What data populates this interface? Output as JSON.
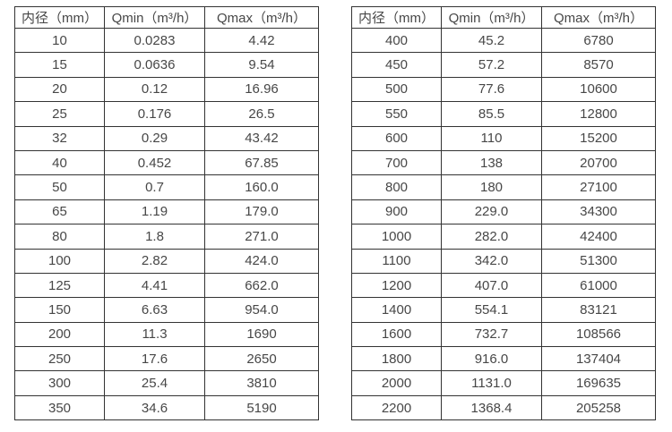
{
  "page": {
    "background_color": "#ffffff",
    "border_color": "#333333",
    "text_color": "#474747"
  },
  "tables": [
    {
      "name": "flow-rate-table-dn10-350",
      "headers": [
        "内径（mm）",
        "Qmin（m³/h）",
        "Qmax（m³/h）"
      ],
      "rows": [
        [
          "10",
          "0.0283",
          "4.42"
        ],
        [
          "15",
          "0.0636",
          "9.54"
        ],
        [
          "20",
          "0.12",
          "16.96"
        ],
        [
          "25",
          "0.176",
          "26.5"
        ],
        [
          "32",
          "0.29",
          "43.42"
        ],
        [
          "40",
          "0.452",
          "67.85"
        ],
        [
          "50",
          "0.7",
          "160.0"
        ],
        [
          "65",
          "1.19",
          "179.0"
        ],
        [
          "80",
          "1.8",
          "271.0"
        ],
        [
          "100",
          "2.82",
          "424.0"
        ],
        [
          "125",
          "4.41",
          "662.0"
        ],
        [
          "150",
          "6.63",
          "954.0"
        ],
        [
          "200",
          "11.3",
          "1690"
        ],
        [
          "250",
          "17.6",
          "2650"
        ],
        [
          "300",
          "25.4",
          "3810"
        ],
        [
          "350",
          "34.6",
          "5190"
        ]
      ]
    },
    {
      "name": "flow-rate-table-dn400-2200",
      "headers": [
        "内径（mm）",
        "Qmin（m³/h）",
        "Qmax（m³/h）"
      ],
      "rows": [
        [
          "400",
          "45.2",
          "6780"
        ],
        [
          "450",
          "57.2",
          "8570"
        ],
        [
          "500",
          "77.6",
          "10600"
        ],
        [
          "550",
          "85.5",
          "12800"
        ],
        [
          "600",
          "110",
          "15200"
        ],
        [
          "700",
          "138",
          "20700"
        ],
        [
          "800",
          "180",
          "27100"
        ],
        [
          "900",
          "229.0",
          "34300"
        ],
        [
          "1000",
          "282.0",
          "42400"
        ],
        [
          "1100",
          "342.0",
          "51300"
        ],
        [
          "1200",
          "407.0",
          "61000"
        ],
        [
          "1400",
          "554.1",
          "83121"
        ],
        [
          "1600",
          "732.7",
          "108566"
        ],
        [
          "1800",
          "916.0",
          "137404"
        ],
        [
          "2000",
          "1131.0",
          "169635"
        ],
        [
          "2200",
          "1368.4",
          "205258"
        ]
      ]
    }
  ]
}
